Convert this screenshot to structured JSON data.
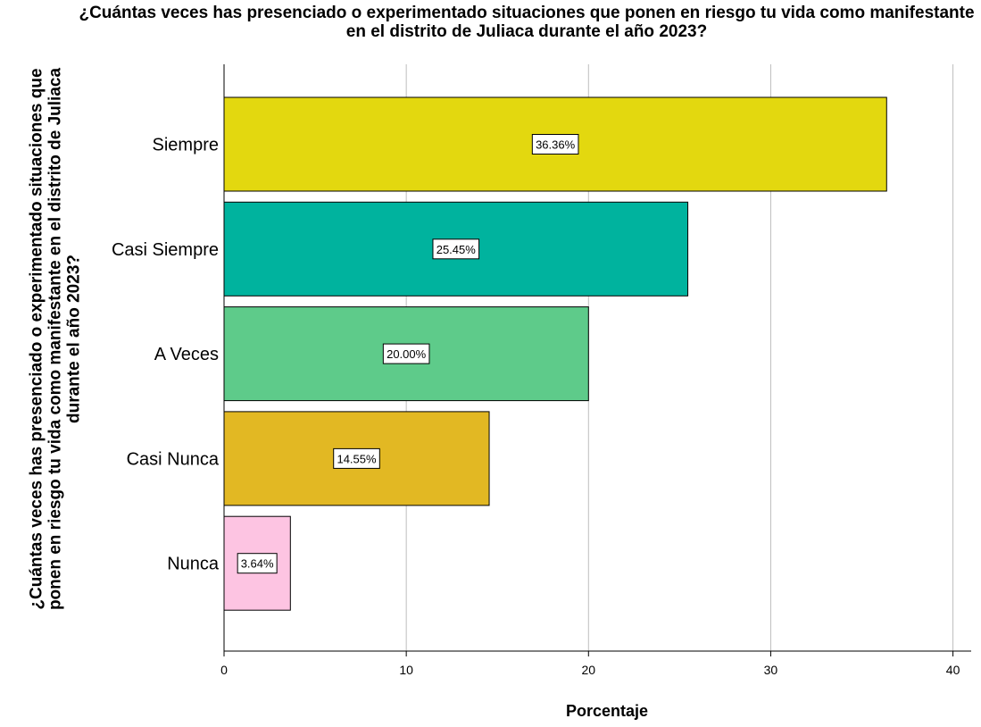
{
  "chart_data": {
    "type": "bar",
    "orientation": "horizontal",
    "title": "¿Cuántas veces has presenciado o experimentado situaciones que ponen en riesgo tu vida como manifestante en el distrito de Juliaca durante el año 2023?",
    "xlabel": "Porcentaje",
    "ylabel": "¿Cuántas veces has presenciado o experimentado situaciones que ponen en riesgo tu vida como manifestante en el distrito de Juliaca durante el año 2023?",
    "categories": [
      "Siempre",
      "Casi Siempre",
      "A Veces",
      "Casi Nunca",
      "Nunca"
    ],
    "values": [
      36.36,
      25.45,
      20.0,
      14.55,
      3.64
    ],
    "data_labels": [
      "36.36%",
      "25.45%",
      "20.00%",
      "14.55%",
      "3.64%"
    ],
    "colors": [
      "#e3d80f",
      "#00b39e",
      "#5ecb8a",
      "#e2b823",
      "#fdc4e2"
    ],
    "xlim": [
      0,
      41
    ],
    "xticks": [
      0,
      10,
      20,
      30,
      40
    ],
    "grid": "vertical",
    "legend": "none"
  }
}
